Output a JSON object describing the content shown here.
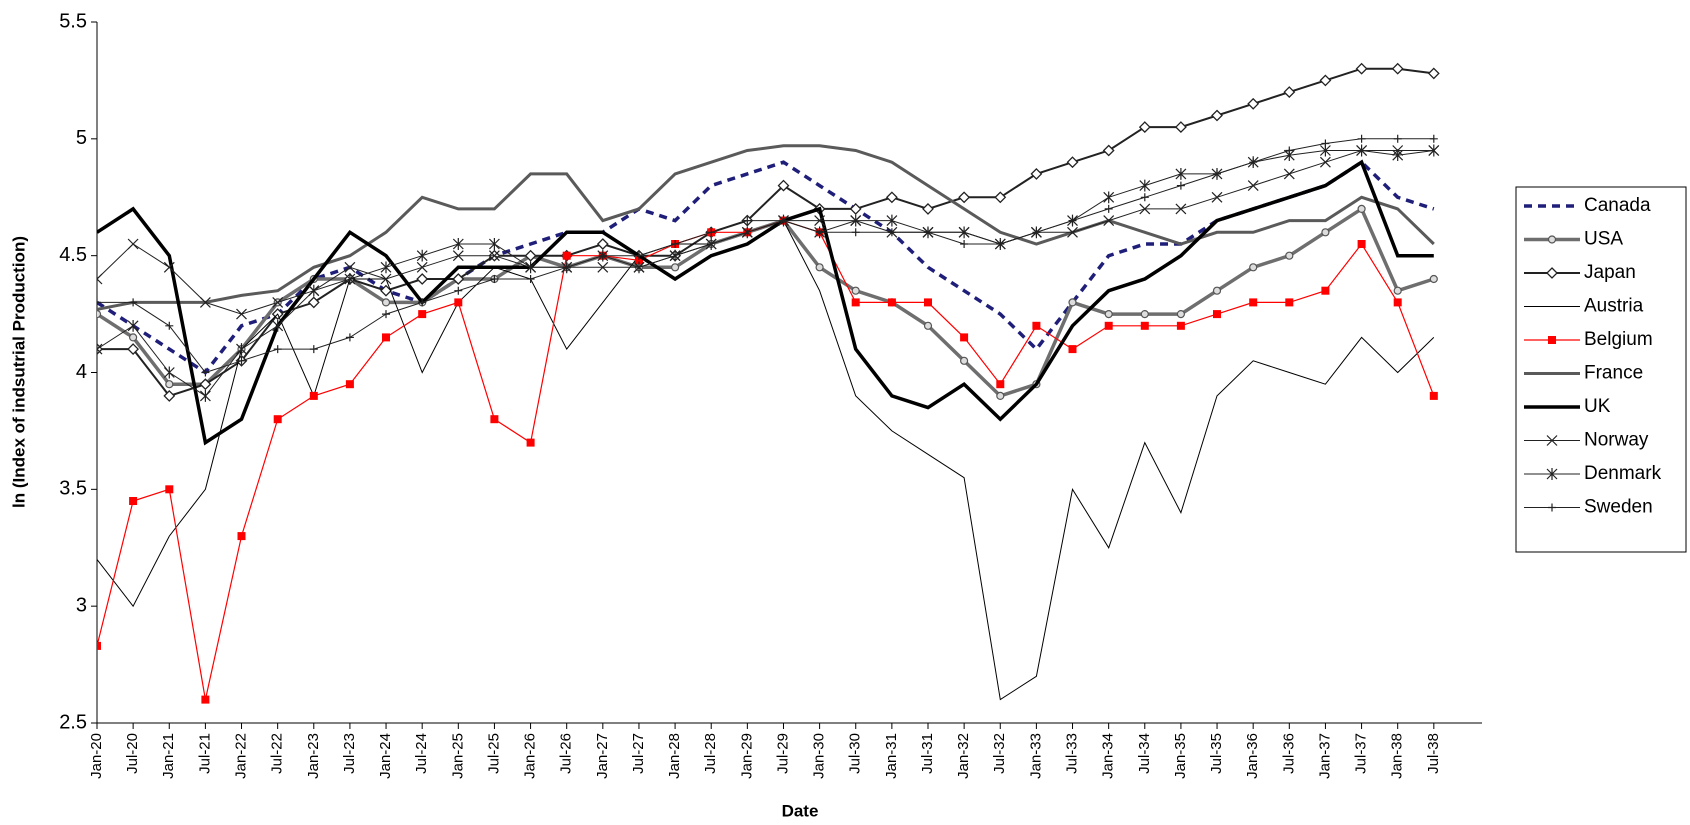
{
  "chart_data": {
    "type": "line",
    "y_label": "ln (Index of indsutrial Production)",
    "x_label": "Date",
    "categories": [
      "Jan-20",
      "Jul-20",
      "Jan-21",
      "Jul-21",
      "Jan-22",
      "Jul-22",
      "Jan-23",
      "Jul-23",
      "Jan-24",
      "Jul-24",
      "Jan-25",
      "Jul-25",
      "Jan-26",
      "Jul-26",
      "Jan-27",
      "Jul-27",
      "Jan-28",
      "Jul-28",
      "Jan-29",
      "Jul-29",
      "Jan-30",
      "Jul-30",
      "Jan-31",
      "Jul-31",
      "Jan-32",
      "Jul-32",
      "Jan-33",
      "Jul-33",
      "Jan-34",
      "Jul-34",
      "Jan-35",
      "Jul-35",
      "Jan-36",
      "Jul-36",
      "Jan-37",
      "Jul-37",
      "Jan-38",
      "Jul-38"
    ],
    "ylim": [
      2.5,
      5.5
    ],
    "yticks": [
      2.5,
      3,
      3.5,
      4,
      4.5,
      5,
      5.5
    ],
    "legend": "right",
    "series": [
      {
        "name": "Canada",
        "color": "#1f1f7a",
        "width": 3.5,
        "dash": "8 6",
        "marker": "none",
        "values": [
          4.3,
          4.2,
          4.1,
          4.0,
          4.2,
          4.25,
          4.4,
          4.45,
          4.35,
          4.3,
          4.4,
          4.5,
          4.55,
          4.6,
          4.6,
          4.7,
          4.65,
          4.8,
          4.85,
          4.9,
          4.8,
          4.7,
          4.6,
          4.45,
          4.35,
          4.25,
          4.1,
          4.3,
          4.5,
          4.55,
          4.55,
          4.65,
          4.7,
          4.75,
          4.8,
          4.9,
          4.75,
          4.7
        ]
      },
      {
        "name": "USA",
        "color": "#6e6e6e",
        "width": 3.5,
        "dash": "none",
        "marker": "circle",
        "values": [
          4.25,
          4.15,
          3.95,
          3.95,
          4.1,
          4.3,
          4.4,
          4.4,
          4.3,
          4.3,
          4.4,
          4.4,
          4.5,
          4.45,
          4.5,
          4.45,
          4.45,
          4.55,
          4.6,
          4.65,
          4.45,
          4.35,
          4.3,
          4.2,
          4.05,
          3.9,
          3.95,
          4.3,
          4.25,
          4.25,
          4.25,
          4.35,
          4.45,
          4.5,
          4.6,
          4.7,
          4.35,
          4.4
        ]
      },
      {
        "name": "Japan",
        "color": "#222222",
        "width": 2,
        "dash": "none",
        "marker": "diamond",
        "values": [
          4.1,
          4.1,
          3.9,
          3.95,
          4.05,
          4.25,
          4.3,
          4.4,
          4.35,
          4.4,
          4.4,
          4.5,
          4.5,
          4.5,
          4.55,
          4.5,
          4.5,
          4.6,
          4.65,
          4.8,
          4.7,
          4.7,
          4.75,
          4.7,
          4.75,
          4.75,
          4.85,
          4.9,
          4.95,
          5.05,
          5.05,
          5.1,
          5.15,
          5.2,
          5.25,
          5.3,
          5.3,
          5.28
        ]
      },
      {
        "name": "Austria",
        "color": "#000000",
        "width": 1,
        "dash": "none",
        "marker": "none",
        "values": [
          3.2,
          3.0,
          3.3,
          3.5,
          4.1,
          4.25,
          3.9,
          4.4,
          4.4,
          4.0,
          4.3,
          4.45,
          4.4,
          4.1,
          4.3,
          4.5,
          4.55,
          4.55,
          4.6,
          4.65,
          4.35,
          3.9,
          3.75,
          3.65,
          3.55,
          2.6,
          2.7,
          3.5,
          3.25,
          3.7,
          3.4,
          3.9,
          4.05,
          4.0,
          3.95,
          4.15,
          4.0,
          4.15
        ]
      },
      {
        "name": "Belgium",
        "color": "#ff0000",
        "width": 1.2,
        "dash": "none",
        "marker": "square",
        "values": [
          2.83,
          3.45,
          3.5,
          2.6,
          3.3,
          3.8,
          3.9,
          3.95,
          4.15,
          4.25,
          4.3,
          3.8,
          3.7,
          4.5,
          4.5,
          4.48,
          4.55,
          4.6,
          4.6,
          4.65,
          4.6,
          4.3,
          4.3,
          4.3,
          4.15,
          3.95,
          4.2,
          4.1,
          4.2,
          4.2,
          4.2,
          4.25,
          4.3,
          4.3,
          4.35,
          4.55,
          4.3,
          3.9
        ]
      },
      {
        "name": "France",
        "color": "#5a5a5a",
        "width": 3,
        "dash": "none",
        "marker": "none",
        "values": [
          4.27,
          4.3,
          4.3,
          4.3,
          4.33,
          4.35,
          4.45,
          4.5,
          4.6,
          4.75,
          4.7,
          4.7,
          4.85,
          4.85,
          4.65,
          4.7,
          4.85,
          4.9,
          4.95,
          4.97,
          4.97,
          4.95,
          4.9,
          4.8,
          4.7,
          4.6,
          4.55,
          4.6,
          4.65,
          4.6,
          4.55,
          4.6,
          4.6,
          4.65,
          4.65,
          4.75,
          4.7,
          4.55
        ]
      },
      {
        "name": "UK",
        "color": "#000000",
        "width": 3.5,
        "dash": "none",
        "marker": "none",
        "values": [
          4.6,
          4.7,
          4.5,
          3.7,
          3.8,
          4.2,
          4.4,
          4.6,
          4.5,
          4.3,
          4.45,
          4.45,
          4.45,
          4.6,
          4.6,
          4.5,
          4.4,
          4.5,
          4.55,
          4.65,
          4.7,
          4.1,
          3.9,
          3.85,
          3.95,
          3.8,
          3.95,
          4.2,
          4.35,
          4.4,
          4.5,
          4.65,
          4.7,
          4.75,
          4.8,
          4.9,
          4.5,
          4.5
        ]
      },
      {
        "name": "Norway",
        "color": "#222222",
        "width": 1,
        "dash": "none",
        "marker": "x",
        "values": [
          4.4,
          4.55,
          4.45,
          4.3,
          4.25,
          4.3,
          4.35,
          4.45,
          4.4,
          4.45,
          4.5,
          4.5,
          4.45,
          4.45,
          4.45,
          4.45,
          4.5,
          4.55,
          4.6,
          4.65,
          4.65,
          4.65,
          4.6,
          4.6,
          4.6,
          4.55,
          4.6,
          4.6,
          4.65,
          4.7,
          4.7,
          4.75,
          4.8,
          4.85,
          4.9,
          4.95,
          4.95,
          4.95
        ]
      },
      {
        "name": "Denmark",
        "color": "#222222",
        "width": 1,
        "dash": "none",
        "marker": "star",
        "values": [
          4.1,
          4.2,
          4.0,
          3.9,
          4.1,
          4.2,
          4.35,
          4.4,
          4.45,
          4.5,
          4.55,
          4.55,
          4.45,
          4.45,
          4.5,
          4.45,
          4.5,
          4.55,
          4.6,
          4.65,
          4.6,
          4.65,
          4.65,
          4.6,
          4.6,
          4.55,
          4.6,
          4.65,
          4.75,
          4.8,
          4.85,
          4.85,
          4.9,
          4.93,
          4.95,
          4.95,
          4.93,
          4.95
        ]
      },
      {
        "name": "Sweden",
        "color": "#222222",
        "width": 1,
        "dash": "none",
        "marker": "plus",
        "values": [
          4.3,
          4.3,
          4.2,
          4.0,
          4.05,
          4.1,
          4.1,
          4.15,
          4.25,
          4.3,
          4.35,
          4.4,
          4.4,
          4.45,
          4.5,
          4.5,
          4.55,
          4.6,
          4.65,
          4.65,
          4.6,
          4.6,
          4.6,
          4.6,
          4.55,
          4.55,
          4.6,
          4.65,
          4.7,
          4.75,
          4.8,
          4.85,
          4.9,
          4.95,
          4.98,
          5.0,
          5.0,
          5.0
        ]
      }
    ]
  }
}
